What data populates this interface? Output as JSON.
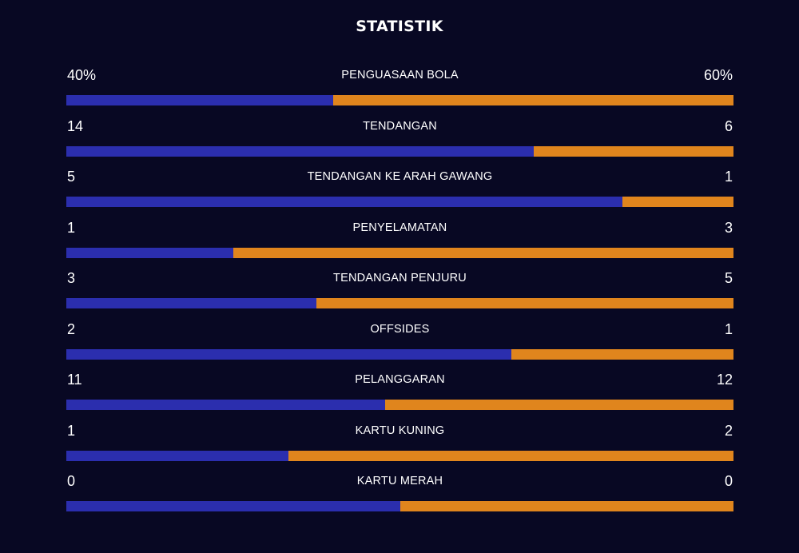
{
  "title": "STATISTIK",
  "colors": {
    "background": "#080823",
    "home": "#2b2eae",
    "away": "#e0851d",
    "text": "#ffffff"
  },
  "stats": [
    {
      "label": "PENGUASAAN BOLA",
      "home": "40%",
      "away": "60%",
      "home_share": 0.4
    },
    {
      "label": "TENDANGAN",
      "home": "14",
      "away": "6",
      "home_share": 0.7
    },
    {
      "label": "TENDANGAN KE ARAH GAWANG",
      "home": "5",
      "away": "1",
      "home_share": 0.833
    },
    {
      "label": "PENYELAMATAN",
      "home": "1",
      "away": "3",
      "home_share": 0.25
    },
    {
      "label": "TENDANGAN PENJURU",
      "home": "3",
      "away": "5",
      "home_share": 0.375
    },
    {
      "label": "OFFSIDES",
      "home": "2",
      "away": "1",
      "home_share": 0.667
    },
    {
      "label": "PELANGGARAN",
      "home": "11",
      "away": "12",
      "home_share": 0.478
    },
    {
      "label": "KARTU KUNING",
      "home": "1",
      "away": "2",
      "home_share": 0.333
    },
    {
      "label": "KARTU MERAH",
      "home": "0",
      "away": "0",
      "home_share": 0.5
    }
  ]
}
